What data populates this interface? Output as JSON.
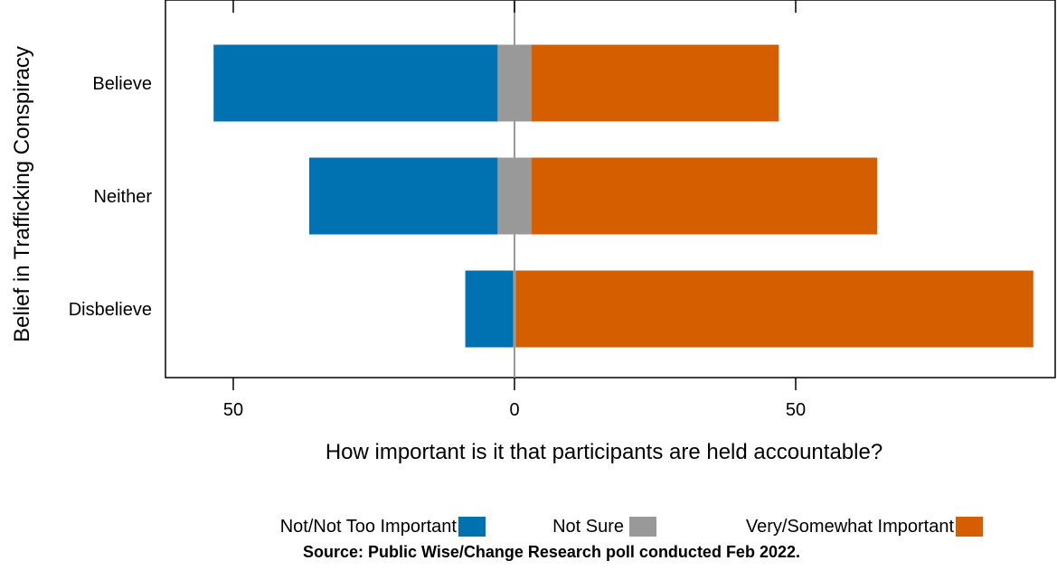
{
  "chart_data": {
    "type": "bar",
    "orientation": "horizontal-diverging",
    "categories": [
      "Believe",
      "Neither",
      "Disbelieve"
    ],
    "series": [
      {
        "name": "Not/Not Too Important",
        "color": "#0072B2",
        "values": [
          50.5,
          33.5,
          8.5
        ],
        "side": "left"
      },
      {
        "name": "Not Sure",
        "color": "#999999",
        "values": [
          6,
          6,
          0.5
        ],
        "side": "center"
      },
      {
        "name": "Very/Somewhat Important",
        "color": "#D55E00",
        "values": [
          44,
          61.5,
          92
        ],
        "side": "right"
      }
    ],
    "xlabel": "How important is it that participants are held accountable?",
    "ylabel": "Belief in Trafficking Conspiracy",
    "xlim": [
      -62,
      96
    ],
    "xticks": [
      -50,
      0,
      50
    ],
    "xtick_labels": [
      "50",
      "0",
      "50"
    ],
    "legend_position": "bottom",
    "source": "Source: Public Wise/Change Research poll conducted Feb 2022."
  }
}
